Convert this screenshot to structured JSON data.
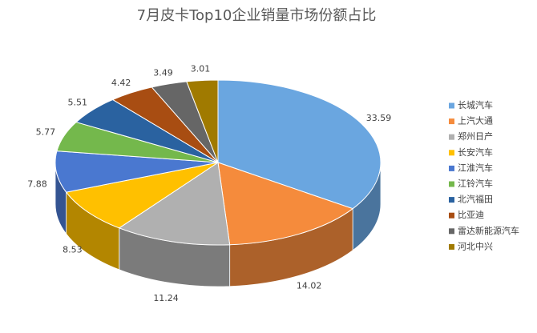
{
  "chart_data": {
    "type": "pie3d",
    "title": "7月皮卡Top10企业销量市场份额占比",
    "categories": [
      "长城汽车",
      "上汽大通",
      "郑州日产",
      "长安汽车",
      "江淮汽车",
      "江铃汽车",
      "北汽福田",
      "比亚迪",
      "雷达新能源汽车",
      "河北中兴"
    ],
    "values": [
      33.59,
      14.02,
      11.24,
      8.53,
      7.88,
      5.77,
      5.51,
      4.42,
      3.49,
      3.01
    ],
    "colors": [
      "#6aa6e0",
      "#f58b3c",
      "#b0b0b0",
      "#ffc000",
      "#4a78d0",
      "#74b84c",
      "#2a62a0",
      "#a84d12",
      "#666666",
      "#a07a00"
    ],
    "legend": "right"
  }
}
